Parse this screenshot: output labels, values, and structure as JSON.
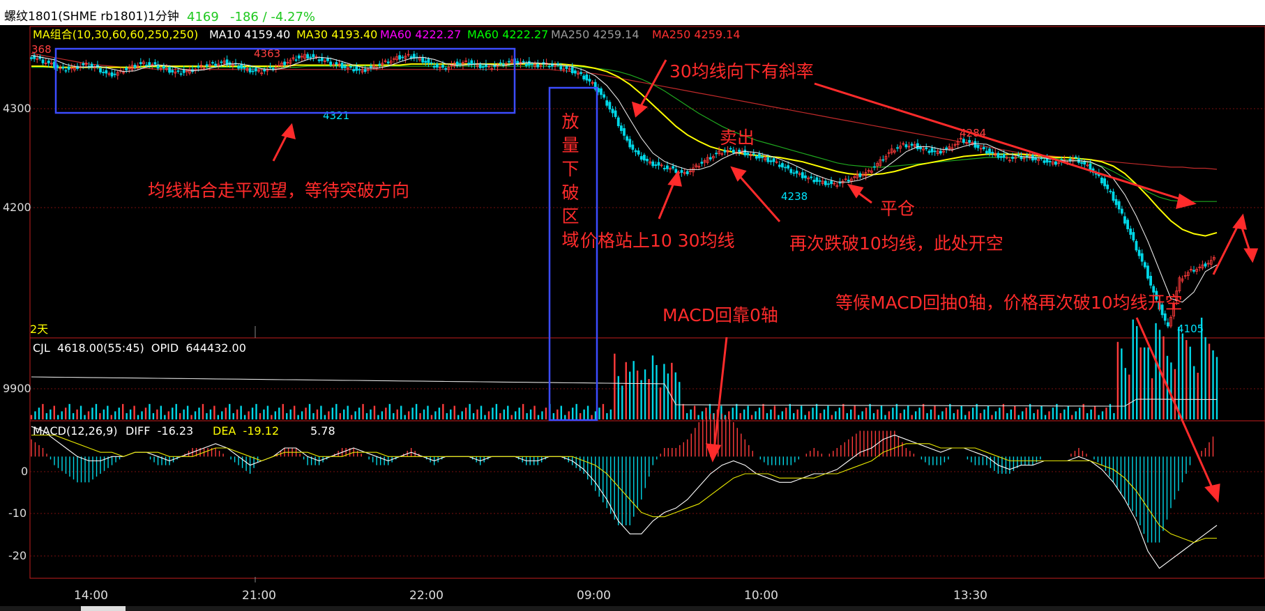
{
  "header": {
    "symbol": "螺纹1801(SHME rb1801)1分钟",
    "last_price": "4169",
    "change": "-186 / -4.27%"
  },
  "ma_legend": {
    "label": "MA组合(10,30,60,60,250,250)",
    "items": [
      {
        "text": "MA10 4159.40",
        "color": "#ffffff"
      },
      {
        "text": "MA30 4193.40",
        "color": "#ffff00"
      },
      {
        "text": "MA60 4222.27",
        "color": "#ff00ff"
      },
      {
        "text": "MA60 4222.27",
        "color": "#00ff00"
      },
      {
        "text": "MA250 4259.14",
        "color": "#9a9a9a"
      },
      {
        "text": "MA250 4259.14",
        "color": "#ff3030"
      }
    ]
  },
  "price_axis": {
    "labels": [
      "4300",
      "4200"
    ],
    "top_label": "368"
  },
  "price_markers": {
    "high_1": "4363",
    "low_1": "4321",
    "low_2": "4238",
    "high_2": "4284",
    "low_3": "4105"
  },
  "period_label": "2天",
  "volume_panel": {
    "legend": "CJL  4618.00(55:45)  OPID  644432.00",
    "axis_label": "9900"
  },
  "macd_panel": {
    "legend_name": "MACD(12,26,9)",
    "diff_label": "DIFF  -16.23",
    "dea_label": "DEA  -19.12",
    "macd_value": "5.78",
    "axis_labels": [
      "0",
      "-10",
      "-20"
    ]
  },
  "time_axis": {
    "labels": [
      "14:00",
      "21:00",
      "22:00",
      "09:00",
      "10:00",
      "13:30"
    ]
  },
  "annotations": {
    "ma_flat": "均线粘合走平观望，等待突破方向",
    "slope": "30均线向下有斜率",
    "breakdown": "放量下破区域",
    "sell": "卖出",
    "price_above": "价格站上10 30均线",
    "short_again": "再次跌破10均线，此处开空",
    "close": "平仓",
    "macd_back": "MACD回靠0轴",
    "wait_macd": "等候MACD回抽0轴，价格再次破10均线开空"
  },
  "chart_data": {
    "type": "candlestick",
    "price_range": [
      4095,
      4385
    ],
    "price_ticks": [
      4300,
      4200
    ],
    "price_series": [
      4358,
      4354,
      4350,
      4345,
      4347,
      4350,
      4346,
      4340,
      4343,
      4348,
      4351,
      4349,
      4345,
      4342,
      4344,
      4348,
      4350,
      4352,
      4349,
      4345,
      4343,
      4346,
      4350,
      4355,
      4358,
      4356,
      4352,
      4349,
      4346,
      4344,
      4348,
      4352,
      4356,
      4358,
      4355,
      4350,
      4346,
      4350,
      4352,
      4349,
      4347,
      4350,
      4353,
      4351,
      4349,
      4350,
      4348,
      4345,
      4340,
      4332,
      4318,
      4300,
      4278,
      4265,
      4258,
      4255,
      4252,
      4248,
      4255,
      4262,
      4268,
      4270,
      4268,
      4265,
      4262,
      4258,
      4252,
      4247,
      4243,
      4240,
      4238,
      4242,
      4246,
      4250,
      4260,
      4270,
      4275,
      4274,
      4270,
      4268,
      4272,
      4280,
      4276,
      4270,
      4266,
      4262,
      4264,
      4263,
      4261,
      4258,
      4260,
      4262,
      4255,
      4245,
      4230,
      4210,
      4185,
      4160,
      4130,
      4105,
      4150,
      4158,
      4162,
      4169
    ],
    "ma30_series": [
      4348,
      4348,
      4347,
      4347,
      4347,
      4347,
      4347,
      4347,
      4347,
      4347,
      4348,
      4348,
      4348,
      4348,
      4348,
      4348,
      4348,
      4348,
      4348,
      4348,
      4348,
      4348,
      4348,
      4349,
      4349,
      4349,
      4349,
      4349,
      4349,
      4349,
      4349,
      4349,
      4349,
      4350,
      4350,
      4350,
      4350,
      4350,
      4350,
      4350,
      4350,
      4350,
      4350,
      4350,
      4350,
      4350,
      4350,
      4349,
      4348,
      4346,
      4343,
      4338,
      4331,
      4322,
      4312,
      4302,
      4292,
      4284,
      4278,
      4273,
      4270,
      4268,
      4266,
      4265,
      4264,
      4263,
      4261,
      4259,
      4256,
      4253,
      4250,
      4248,
      4247,
      4247,
      4248,
      4250,
      4253,
      4256,
      4258,
      4260,
      4262,
      4264,
      4265,
      4266,
      4266,
      4266,
      4266,
      4265,
      4264,
      4263,
      4263,
      4262,
      4261,
      4259,
      4255,
      4248,
      4238,
      4227,
      4215,
      4204,
      4196,
      4192,
      4190,
      4193
    ],
    "ma60_series": [
      4347,
      4347,
      4347,
      4347,
      4347,
      4347,
      4347,
      4347,
      4347,
      4347,
      4347,
      4347,
      4347,
      4347,
      4347,
      4347,
      4347,
      4347,
      4347,
      4347,
      4347,
      4347,
      4347,
      4347,
      4348,
      4348,
      4348,
      4348,
      4348,
      4348,
      4348,
      4348,
      4348,
      4348,
      4348,
      4348,
      4348,
      4348,
      4348,
      4348,
      4348,
      4348,
      4348,
      4348,
      4348,
      4348,
      4348,
      4348,
      4347,
      4346,
      4345,
      4343,
      4340,
      4336,
      4331,
      4325,
      4318,
      4311,
      4304,
      4298,
      4292,
      4287,
      4283,
      4279,
      4276,
      4273,
      4270,
      4267,
      4264,
      4261,
      4258,
      4256,
      4255,
      4254,
      4254,
      4255,
      4256,
      4257,
      4258,
      4259,
      4260,
      4261,
      4262,
      4263,
      4263,
      4263,
      4263,
      4263,
      4262,
      4262,
      4261,
      4260,
      4258,
      4255,
      4250,
      4244,
      4238,
      4231,
      4226,
      4223,
      4222,
      4222,
      4222,
      4222
    ],
    "ma250_series": [
      4360,
      4358,
      4356,
      4354,
      4352,
      4350,
      4349,
      4348,
      4347,
      4346,
      4346,
      4345,
      4345,
      4345,
      4345,
      4345,
      4345,
      4345,
      4345,
      4345,
      4345,
      4345,
      4345,
      4345,
      4345,
      4345,
      4345,
      4345,
      4345,
      4345,
      4345,
      4345,
      4345,
      4345,
      4345,
      4345,
      4345,
      4345,
      4345,
      4345,
      4345,
      4345,
      4345,
      4345,
      4345,
      4345,
      4344,
      4343,
      4342,
      4341,
      4339,
      4337,
      4335,
      4333,
      4331,
      4329,
      4327,
      4325,
      4323,
      4321,
      4319,
      4317,
      4315,
      4313,
      4311,
      4309,
      4307,
      4305,
      4303,
      4301,
      4299,
      4297,
      4295,
      4293,
      4291,
      4289,
      4287,
      4285,
      4283,
      4281,
      4279,
      4277,
      4275,
      4273,
      4271,
      4269,
      4267,
      4266,
      4265,
      4264,
      4263,
      4262,
      4261,
      4260,
      4259,
      4258,
      4257,
      4256,
      4255,
      4254,
      4254,
      4253,
      4253,
      4252
    ],
    "macd_range": [
      -28,
      8
    ],
    "macd_ticks": [
      0,
      -10,
      -20
    ],
    "diff_series": [
      7,
      6,
      4,
      2,
      0,
      -1,
      -1,
      0,
      0,
      1,
      1,
      0,
      -1,
      0,
      1,
      2,
      3,
      2,
      0,
      -2,
      -1,
      0,
      2,
      2,
      0,
      -1,
      0,
      1,
      2,
      1,
      0,
      -1,
      0,
      1,
      0,
      -1,
      0,
      0,
      0,
      -1,
      0,
      0,
      0,
      -1,
      -1,
      0,
      0,
      -1,
      -3,
      -6,
      -10,
      -15,
      -18,
      -18,
      -15,
      -13,
      -12,
      -10,
      -7,
      -4,
      -2,
      -1,
      -2,
      -4,
      -5,
      -6,
      -6,
      -5,
      -4,
      -4,
      -3,
      -1,
      1,
      2,
      4,
      5,
      4,
      3,
      2,
      1,
      2,
      2,
      1,
      0,
      -2,
      -3,
      -2,
      -2,
      -1,
      -1,
      -1,
      0,
      -1,
      -3,
      -6,
      -10,
      -15,
      -22,
      -26,
      -24,
      -22,
      -20,
      -18,
      -16
    ],
    "dea_series": [
      5,
      5,
      5,
      4,
      3,
      2,
      1,
      1,
      0,
      1,
      1,
      1,
      0,
      0,
      0,
      1,
      2,
      2,
      1,
      0,
      -1,
      0,
      1,
      1,
      1,
      0,
      0,
      0,
      1,
      1,
      1,
      0,
      0,
      0,
      0,
      0,
      0,
      0,
      0,
      0,
      0,
      0,
      0,
      0,
      0,
      0,
      0,
      0,
      -1,
      -2,
      -4,
      -7,
      -10,
      -13,
      -14,
      -14,
      -13,
      -12,
      -11,
      -9,
      -7,
      -5,
      -4,
      -4,
      -4,
      -5,
      -5,
      -5,
      -5,
      -4,
      -4,
      -3,
      -2,
      -1,
      1,
      2,
      3,
      3,
      3,
      2,
      2,
      2,
      2,
      1,
      0,
      -1,
      -1,
      -1,
      -1,
      -1,
      -1,
      -1,
      -1,
      -2,
      -3,
      -5,
      -8,
      -12,
      -16,
      -18,
      -19,
      -20,
      -19,
      -19
    ],
    "volume_max": 9900
  }
}
